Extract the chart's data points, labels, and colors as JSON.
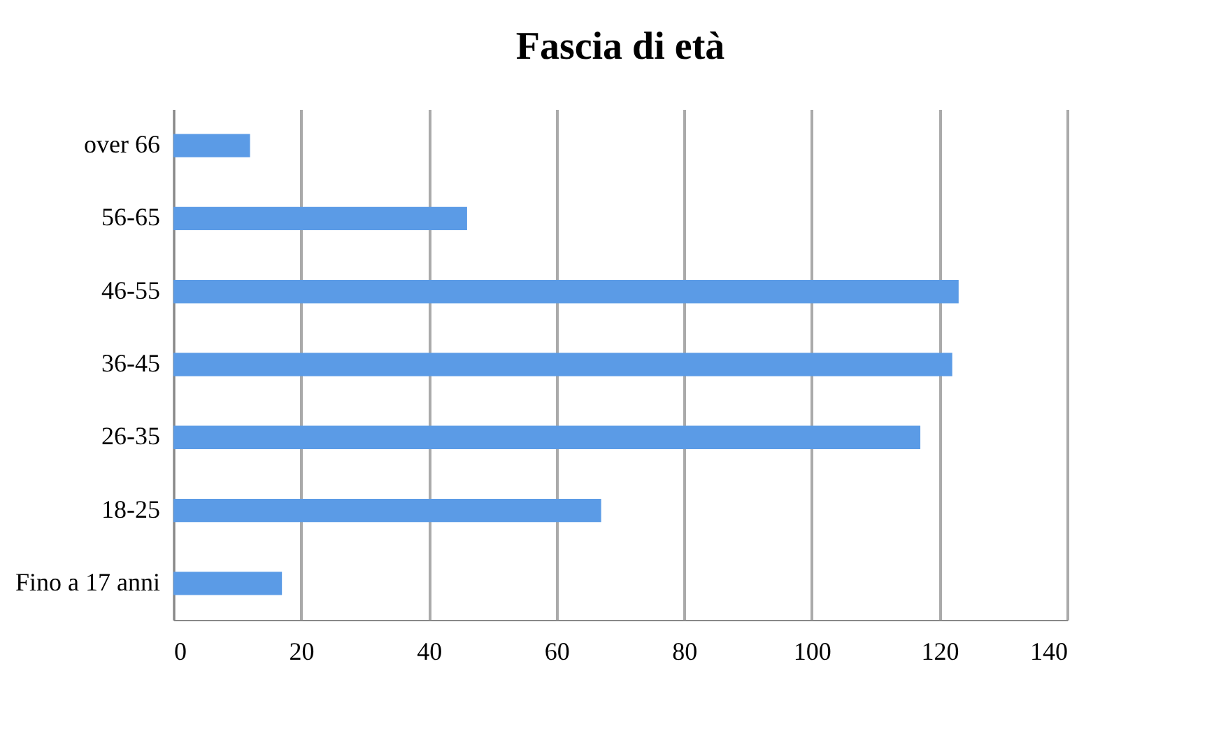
{
  "chart_data": {
    "type": "bar",
    "orientation": "horizontal",
    "title": "Fascia di età",
    "categories": [
      "over 66",
      "56-65",
      "46-55",
      "36-45",
      "26-35",
      "18-25",
      "Fino a 17 anni"
    ],
    "values": [
      12,
      46,
      123,
      122,
      117,
      67,
      17
    ],
    "color": "#5b9be6",
    "xlim": [
      0,
      140
    ],
    "xticks": [
      0,
      20,
      40,
      60,
      80,
      100,
      120,
      140
    ],
    "grid": "x"
  }
}
